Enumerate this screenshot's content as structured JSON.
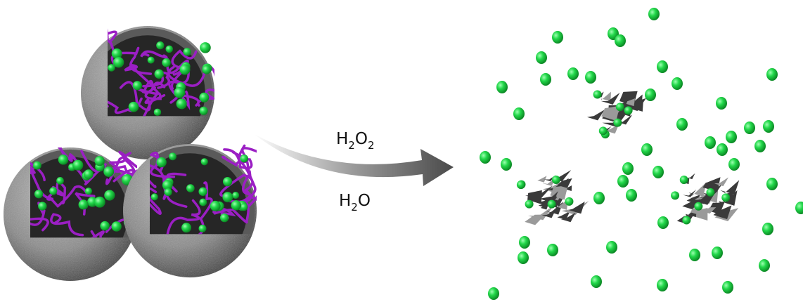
{
  "arrow_labels": [
    {
      "segments": [
        {
          "text": "H"
        },
        {
          "text": "2",
          "sub": true
        },
        {
          "text": "O"
        },
        {
          "text": "2",
          "sub": true
        }
      ]
    },
    {
      "segments": [
        {
          "text": "H"
        },
        {
          "text": "2",
          "sub": true
        },
        {
          "text": "O"
        }
      ]
    }
  ]
}
